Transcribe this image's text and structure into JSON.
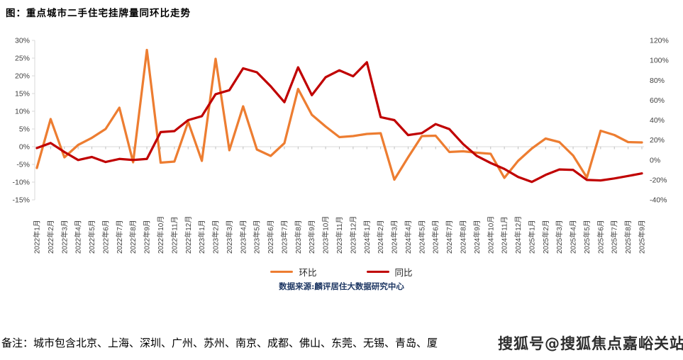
{
  "title": "图：重点城市二手住宅挂牌量同环比走势",
  "source": "数据来源:麟评居住大数据研究中心",
  "note": "备注：城市包含北京、上海、深圳、广州、苏州、南京、成都、佛山、东莞、无锡、青岛、厦",
  "watermark": "搜狐号@搜狐焦点嘉峪关站",
  "colors": {
    "mom_line": "#ED7D31",
    "yoy_line": "#C00000",
    "grid_line": "#D9D9D9",
    "tick_mark": "#BFBFBF",
    "axis_text": "#404040",
    "source_text": "#1F3864"
  },
  "chart_data": {
    "type": "line",
    "title": "图：重点城市二手住宅挂牌量同环比走势",
    "legend_position": "bottom",
    "grid": "zero-line-only",
    "categories": [
      "2022年1月",
      "2022年2月",
      "2022年3月",
      "2022年4月",
      "2022年5月",
      "2022年6月",
      "2022年7月",
      "2022年8月",
      "2022年9月",
      "2022年10月",
      "2022年11月",
      "2022年12月",
      "2023年1月",
      "2023年2月",
      "2023年3月",
      "2023年4月",
      "2023年5月",
      "2023年6月",
      "2023年7月",
      "2023年8月",
      "2023年9月",
      "2023年10月",
      "2023年11月",
      "2023年12月",
      "2024年1月",
      "2024年2月",
      "2024年3月",
      "2024年4月",
      "2024年5月",
      "2024年6月",
      "2024年7月",
      "2024年8月",
      "2024年9月",
      "2024年10月",
      "2024年11月",
      "2024年12月",
      "2025年1月",
      "2025年2月",
      "2025年3月",
      "2025年4月",
      "2025年5月",
      "2025年6月",
      "2025年7月",
      "2025年8月",
      "2025年9月"
    ],
    "series": [
      {
        "name": "环比",
        "axis": "left",
        "color": "#ED7D31",
        "values": [
          -6,
          7.8,
          -3,
          0.5,
          2.5,
          5,
          11,
          -4.4,
          27.3,
          -4.5,
          -4.2,
          7,
          -4,
          24.8,
          -1,
          11.4,
          -0.8,
          -2.6,
          1,
          16.3,
          9,
          5.7,
          2.7,
          3,
          3.6,
          3.8,
          -9.3,
          -3,
          3,
          3.1,
          -1.5,
          -1.3,
          -1.7,
          -2,
          -8.8,
          -4,
          -0.5,
          2.3,
          1.3,
          -2.5,
          -8.7,
          4.5,
          3.3,
          1.3,
          1.2
        ]
      },
      {
        "name": "同比",
        "axis": "right",
        "color": "#C00000",
        "values": [
          12,
          17,
          8,
          0,
          3,
          -2,
          1,
          0,
          1,
          28,
          29,
          40,
          44,
          66,
          70,
          92,
          88,
          74,
          58,
          93,
          65,
          83,
          90,
          84,
          98,
          43,
          40,
          25,
          27,
          36,
          31,
          16,
          4,
          -3,
          -9,
          -17,
          -22,
          -15,
          -9.5,
          -10,
          -20,
          -20.5,
          -18.5,
          -16,
          -13.5
        ]
      }
    ],
    "left_axis": {
      "min": -15,
      "max": 30,
      "step": 5,
      "unit": "%",
      "ticks": [
        "30%",
        "25%",
        "20%",
        "15%",
        "10%",
        "5%",
        "0%",
        "-5%",
        "-10%",
        "-15%"
      ]
    },
    "right_axis": {
      "min": -40,
      "max": 120,
      "step": 20,
      "unit": "%",
      "ticks": [
        "120%",
        "100%",
        "80%",
        "60%",
        "40%",
        "20%",
        "0%",
        "-20%",
        "-40%"
      ]
    }
  }
}
